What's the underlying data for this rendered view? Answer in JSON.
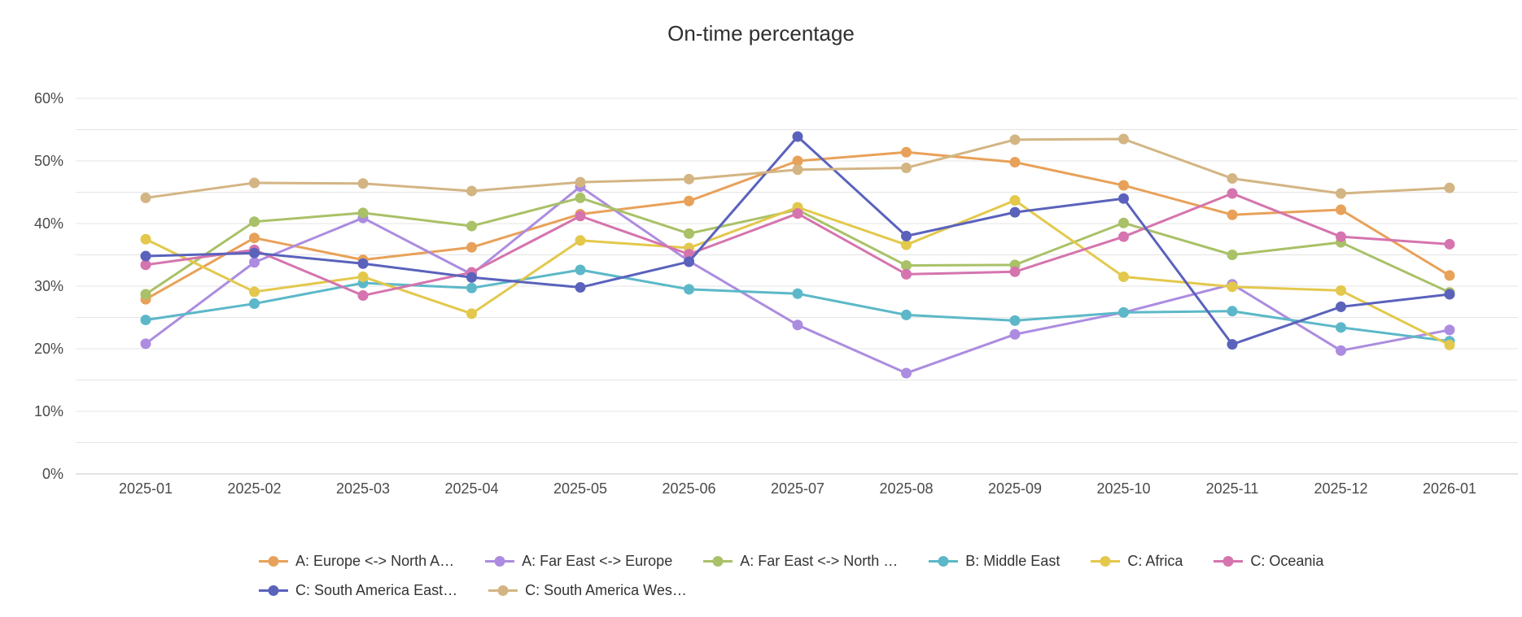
{
  "title": "On-time percentage",
  "chart_data": {
    "type": "line",
    "title": "On-time percentage",
    "xlabel": "",
    "ylabel": "",
    "ylim": [
      0,
      60
    ],
    "y_tick_step": 10,
    "y_grid_step": 5,
    "y_tick_suffix": "%",
    "grid": true,
    "legend_position": "bottom",
    "legend_break_after": 6,
    "categories": [
      "2025-01",
      "2025-02",
      "2025-03",
      "2025-04",
      "2025-05",
      "2025-06",
      "2025-07",
      "2025-08",
      "2025-09",
      "2025-10",
      "2025-11",
      "2025-12",
      "2026-01"
    ],
    "series": [
      {
        "name": "A: Europe <-> North A…",
        "color": "#E8A159",
        "values": [
          27.9,
          37.7,
          34.2,
          36.2,
          41.5,
          43.6,
          50.0,
          51.4,
          49.8,
          46.1,
          41.4,
          42.2,
          31.7
        ]
      },
      {
        "name": "A: Far East <-> Europe",
        "color": "#AC8CE0",
        "values": [
          20.8,
          33.8,
          40.9,
          31.9,
          45.9,
          34.0,
          23.8,
          16.1,
          22.3,
          25.8,
          30.3,
          19.7,
          23.0
        ]
      },
      {
        "name": "A: Far East <-> North …",
        "color": "#A9C167",
        "values": [
          28.7,
          40.3,
          41.7,
          39.6,
          44.1,
          38.4,
          42.2,
          33.3,
          33.4,
          40.1,
          35.0,
          37.0,
          29.0
        ]
      },
      {
        "name": "B: Middle East",
        "color": "#5CB8C8",
        "values": [
          24.6,
          27.2,
          30.5,
          29.7,
          32.6,
          29.5,
          28.8,
          25.4,
          24.5,
          25.8,
          26.0,
          23.4,
          21.2
        ]
      },
      {
        "name": "C: Africa",
        "color": "#E3C84C",
        "values": [
          37.5,
          29.1,
          31.5,
          25.6,
          37.3,
          36.1,
          42.6,
          36.6,
          43.7,
          31.5,
          29.9,
          29.3,
          20.6
        ]
      },
      {
        "name": "C: Oceania",
        "color": "#D574AE",
        "values": [
          33.4,
          35.8,
          28.5,
          32.2,
          41.2,
          35.1,
          41.6,
          31.9,
          32.3,
          37.9,
          44.8,
          37.9,
          36.7
        ]
      },
      {
        "name": "C: South America East…",
        "color": "#5A62BC",
        "values": [
          34.8,
          35.3,
          33.6,
          31.4,
          29.8,
          33.9,
          53.9,
          38.0,
          41.8,
          44.0,
          20.7,
          26.7,
          28.7
        ]
      },
      {
        "name": "C: South America Wes…",
        "color": "#D3B584",
        "values": [
          44.1,
          46.5,
          46.4,
          45.2,
          46.6,
          47.1,
          48.6,
          48.9,
          53.4,
          53.5,
          47.2,
          44.8,
          45.7
        ]
      }
    ],
    "colors": {
      "gridline": "#e4e4e4",
      "axis_line": "#c6c6c6",
      "tick_label": "#4a4a4a",
      "title_text": "#2f2f2f",
      "legend_text": "#333333",
      "background": "#ffffff"
    }
  }
}
